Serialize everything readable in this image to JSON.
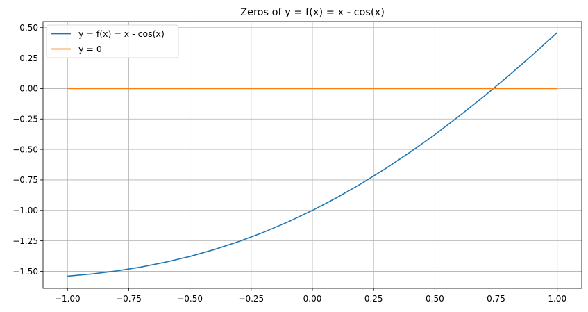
{
  "chart_data": {
    "type": "line",
    "title": "Zeros of y = f(x) = x - cos(x)",
    "xlabel": "",
    "ylabel": "",
    "xlim": [
      -1.1,
      1.1
    ],
    "ylim": [
      -1.64,
      0.55
    ],
    "x_ticks": [
      -1.0,
      -0.75,
      -0.5,
      -0.25,
      0.0,
      0.25,
      0.5,
      0.75,
      1.0
    ],
    "x_tick_labels": [
      "−1.00",
      "−0.75",
      "−0.50",
      "−0.25",
      "0.00",
      "0.25",
      "0.50",
      "0.75",
      "1.00"
    ],
    "y_ticks": [
      0.5,
      0.25,
      0.0,
      -0.25,
      -0.5,
      -0.75,
      -1.0,
      -1.25,
      -1.5
    ],
    "y_tick_labels": [
      "0.50",
      "0.25",
      "0.00",
      "−0.25",
      "−0.50",
      "−0.75",
      "−1.00",
      "−1.25",
      "−1.50"
    ],
    "grid": true,
    "legend_position": "upper-left",
    "series": [
      {
        "name": "y = f(x) = x - cos(x)",
        "color": "#1f77b4",
        "x": [
          -1.0,
          -0.9,
          -0.8,
          -0.7,
          -0.6,
          -0.5,
          -0.4,
          -0.3,
          -0.2,
          -0.1,
          0.0,
          0.1,
          0.2,
          0.3,
          0.4,
          0.5,
          0.6,
          0.7,
          0.8,
          0.9,
          1.0
        ],
        "y": [
          -1.54,
          -1.522,
          -1.497,
          -1.465,
          -1.425,
          -1.378,
          -1.321,
          -1.255,
          -1.18,
          -1.095,
          -1.0,
          -0.895,
          -0.78,
          -0.655,
          -0.521,
          -0.378,
          -0.225,
          -0.065,
          0.103,
          0.278,
          0.46
        ]
      },
      {
        "name": "y = 0",
        "color": "#ff7f0e",
        "x": [
          -1.0,
          1.0
        ],
        "y": [
          0.0,
          0.0
        ]
      }
    ]
  }
}
